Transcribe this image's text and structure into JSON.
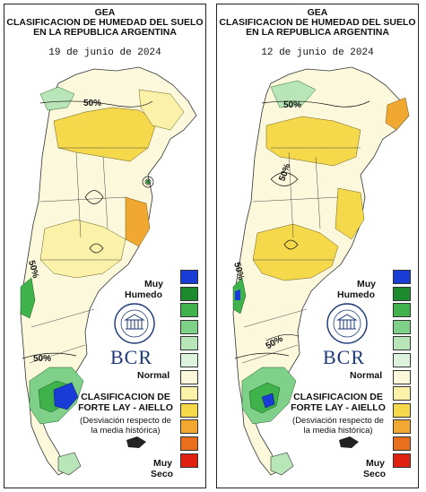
{
  "panels": [
    {
      "org": "GEA",
      "title_line1": "CLASIFICACION DE HUMEDAD DEL SUELO",
      "title_line2": "EN LA REPUBLICA ARGENTINA",
      "date": "19 de junio de 2024",
      "isolines": [
        "50%",
        "50%",
        "50%"
      ]
    },
    {
      "org": "GEA",
      "title_line1": "CLASIFICACION DE HUMEDAD DEL SUELO",
      "title_line2": "EN LA REPUBLICA ARGENTINA",
      "date": "12 de junio de 2024",
      "isolines": [
        "50%",
        "50%",
        "50%",
        "50%"
      ]
    }
  ],
  "legend": {
    "top_label_1": "Muy",
    "top_label_2": "Humedo",
    "mid_label": "Normal",
    "bottom_label_1": "Muy",
    "bottom_label_2": "Seco",
    "colors": [
      "#1a3cd6",
      "#1e8a2e",
      "#3fb24c",
      "#7fd18a",
      "#b8e6b8",
      "#dcf2dc",
      "#fbf8dc",
      "#fbf1a8",
      "#f5d94a",
      "#f0a830",
      "#e8701c",
      "#e02010"
    ]
  },
  "classification": {
    "title_line1": "CLASIFICACION DE",
    "title_line2": "FORTE LAY - AIELLO",
    "subtitle_line1": "(Desviación respecto de",
    "subtitle_line2": "la media histórica)"
  },
  "logo": {
    "text": "BCR",
    "seal_text": "BOLSA DE COMERCIO DE ROSARIO"
  }
}
